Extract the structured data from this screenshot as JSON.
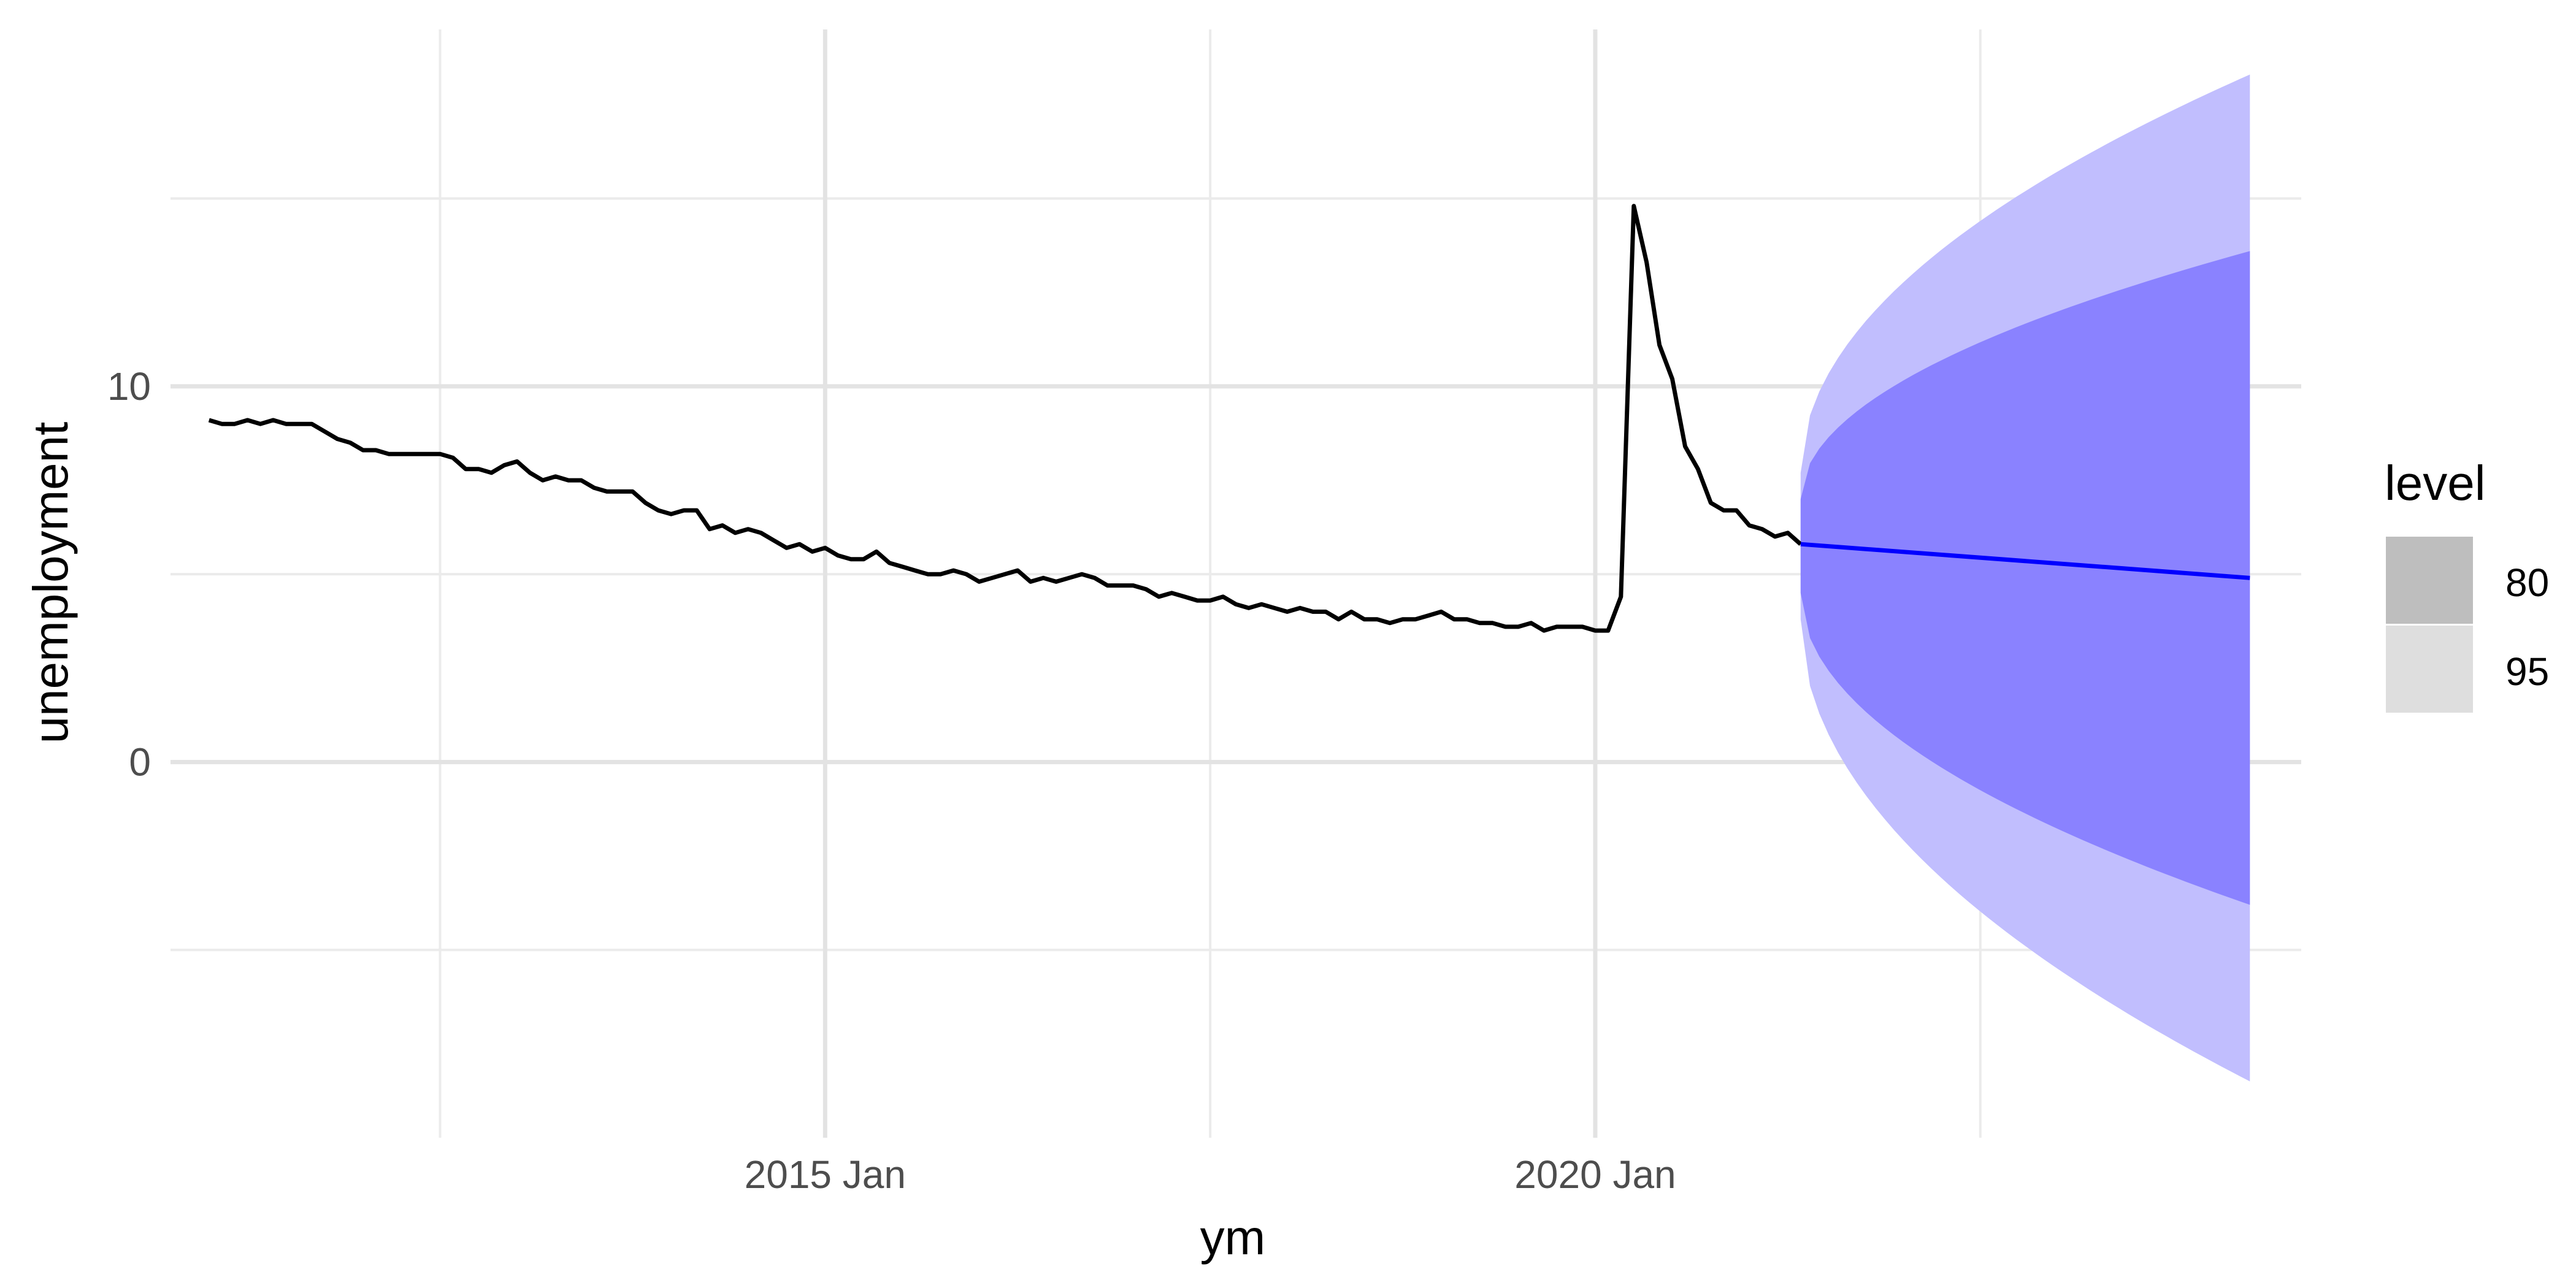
{
  "chart_data": {
    "type": "line",
    "xlabel": "ym",
    "ylabel": "unemployment",
    "xlim": [
      "2010-10",
      "2024-08"
    ],
    "ylim": [
      -10,
      19.5
    ],
    "x_major_ticks": [
      {
        "value": "2015-01",
        "label": "2015 Jan"
      },
      {
        "value": "2020-01",
        "label": "2020 Jan"
      }
    ],
    "x_minor_ticks": [
      "2012-07",
      "2017-07",
      "2022-07"
    ],
    "y_major_ticks": [
      {
        "value": 0,
        "label": "0"
      },
      {
        "value": 10,
        "label": "10"
      }
    ],
    "y_minor_ticks": [
      -5,
      5,
      15
    ],
    "grid": true,
    "legend": {
      "title": "level",
      "position": "right",
      "items": [
        {
          "label": "80",
          "color": "#bebebe"
        },
        {
          "label": "95",
          "color": "#dedede"
        }
      ]
    },
    "series": [
      {
        "type": "observed",
        "color": "#000000",
        "start": "2011-01",
        "values": [
          9.1,
          9.0,
          9.0,
          9.1,
          9.0,
          9.1,
          9.0,
          9.0,
          9.0,
          8.8,
          8.6,
          8.5,
          8.3,
          8.3,
          8.2,
          8.2,
          8.2,
          8.2,
          8.2,
          8.1,
          7.8,
          7.8,
          7.7,
          7.9,
          8.0,
          7.7,
          7.5,
          7.6,
          7.5,
          7.5,
          7.3,
          7.2,
          7.2,
          7.2,
          6.9,
          6.7,
          6.6,
          6.7,
          6.7,
          6.2,
          6.3,
          6.1,
          6.2,
          6.1,
          5.9,
          5.7,
          5.8,
          5.6,
          5.7,
          5.5,
          5.4,
          5.4,
          5.6,
          5.3,
          5.2,
          5.1,
          5.0,
          5.0,
          5.1,
          5.0,
          4.8,
          4.9,
          5.0,
          5.1,
          4.8,
          4.9,
          4.8,
          4.9,
          5.0,
          4.9,
          4.7,
          4.7,
          4.7,
          4.6,
          4.4,
          4.5,
          4.4,
          4.3,
          4.3,
          4.4,
          4.2,
          4.1,
          4.2,
          4.1,
          4.0,
          4.1,
          4.0,
          4.0,
          3.8,
          4.0,
          3.8,
          3.8,
          3.7,
          3.8,
          3.8,
          3.9,
          4.0,
          3.8,
          3.8,
          3.7,
          3.7,
          3.6,
          3.6,
          3.7,
          3.5,
          3.6,
          3.6,
          3.6,
          3.5,
          3.5,
          4.4,
          14.8,
          13.3,
          11.1,
          10.2,
          8.4,
          7.8,
          6.9,
          6.7,
          6.7,
          6.3,
          6.2,
          6.0,
          6.1,
          5.8
        ]
      },
      {
        "type": "forecast",
        "color": "#0000ff",
        "start": "2021-05",
        "end": "2024-04",
        "mean": [
          5.8,
          4.9
        ],
        "interval_80": {
          "color": "#8a82ff",
          "lower": [
            4.5,
            -3.8
          ],
          "upper": [
            7.0,
            13.6
          ]
        },
        "interval_95": {
          "color": "#c1befe",
          "lower": [
            3.8,
            -8.5
          ],
          "upper": [
            7.7,
            18.3
          ]
        }
      }
    ]
  }
}
